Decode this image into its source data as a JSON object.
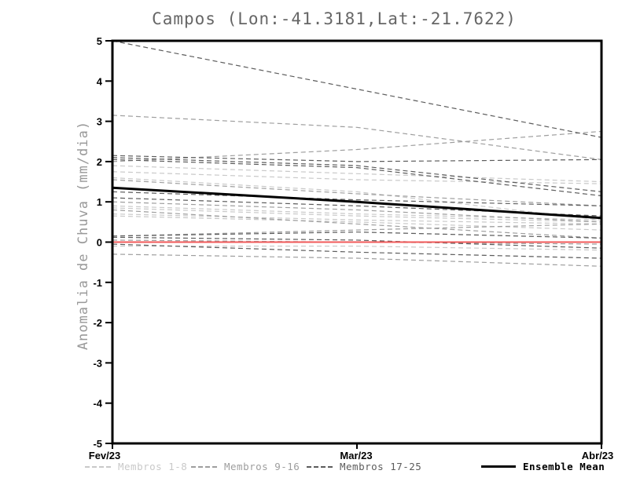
{
  "title": "Campos (Lon:-41.3181,Lat:-21.7622)",
  "ylabel": "Anomalia de Chuva (mm/dia)",
  "chart_data": {
    "type": "line",
    "title": "Campos (Lon:-41.3181,Lat:-21.7622)",
    "xlabel": "",
    "ylabel": "Anomalia de Chuva (mm/dia)",
    "x_categories": [
      "Fev/23",
      "Mar/23",
      "Abr/23"
    ],
    "ylim": [
      -5,
      5
    ],
    "yticks": [
      -5,
      -4,
      -3,
      -2,
      -1,
      0,
      1,
      2,
      3,
      4,
      5
    ],
    "grid": false,
    "legend_position": "bottom",
    "frame_color": "#000000",
    "groups": [
      {
        "name": "Membros 1-8",
        "color": "#c9c9c9",
        "style": "dashed",
        "lines": [
          [
            1.9,
            1.7,
            1.5
          ],
          [
            1.75,
            1.55,
            1.45
          ],
          [
            1.6,
            1.25,
            0.55
          ],
          [
            0.9,
            0.7,
            0.55
          ],
          [
            0.85,
            0.65,
            0.5
          ],
          [
            0.7,
            0.55,
            0.45
          ],
          [
            0.65,
            0.5,
            0.3
          ],
          [
            -0.1,
            -0.1,
            -0.2
          ]
        ]
      },
      {
        "name": "Membros 9-16",
        "color": "#9e9e9e",
        "style": "dashed",
        "lines": [
          [
            3.15,
            2.85,
            2.05
          ],
          [
            2.0,
            2.3,
            2.75
          ],
          [
            1.55,
            1.2,
            0.9
          ],
          [
            1.0,
            0.8,
            0.5
          ],
          [
            0.8,
            0.45,
            0.1
          ],
          [
            0.15,
            0.3,
            0.45
          ],
          [
            0.05,
            0.0,
            -0.05
          ],
          [
            -0.3,
            -0.4,
            -0.6
          ]
        ]
      },
      {
        "name": "Membros 17-25",
        "color": "#5c5c5c",
        "style": "dashed",
        "lines": [
          [
            5.0,
            3.8,
            2.6
          ],
          [
            2.15,
            2.0,
            2.05
          ],
          [
            2.1,
            1.9,
            1.25
          ],
          [
            2.05,
            1.85,
            1.15
          ],
          [
            1.25,
            1.05,
            0.9
          ],
          [
            1.1,
            0.9,
            0.65
          ],
          [
            0.15,
            0.25,
            0.1
          ],
          [
            0.12,
            0.05,
            -0.15
          ],
          [
            -0.05,
            -0.25,
            -0.4
          ]
        ]
      }
    ],
    "reference_line": {
      "name": "zero-anomaly",
      "color": "#f15a5a",
      "values": [
        0.0,
        0.0,
        0.0
      ]
    },
    "ensemble_mean": {
      "name": "Ensemble Mean",
      "color": "#000000",
      "values": [
        1.35,
        1.0,
        0.6
      ]
    }
  },
  "legend": {
    "items": [
      {
        "label": "Membros 1-8",
        "color": "#c9c9c9",
        "style": "dashed"
      },
      {
        "label": "Membros 9-16",
        "color": "#9e9e9e",
        "style": "dashed"
      },
      {
        "label": "Membros 17-25",
        "color": "#5c5c5c",
        "style": "dashed"
      },
      {
        "label": "Ensemble Mean",
        "color": "#000000",
        "style": "solid"
      }
    ]
  }
}
